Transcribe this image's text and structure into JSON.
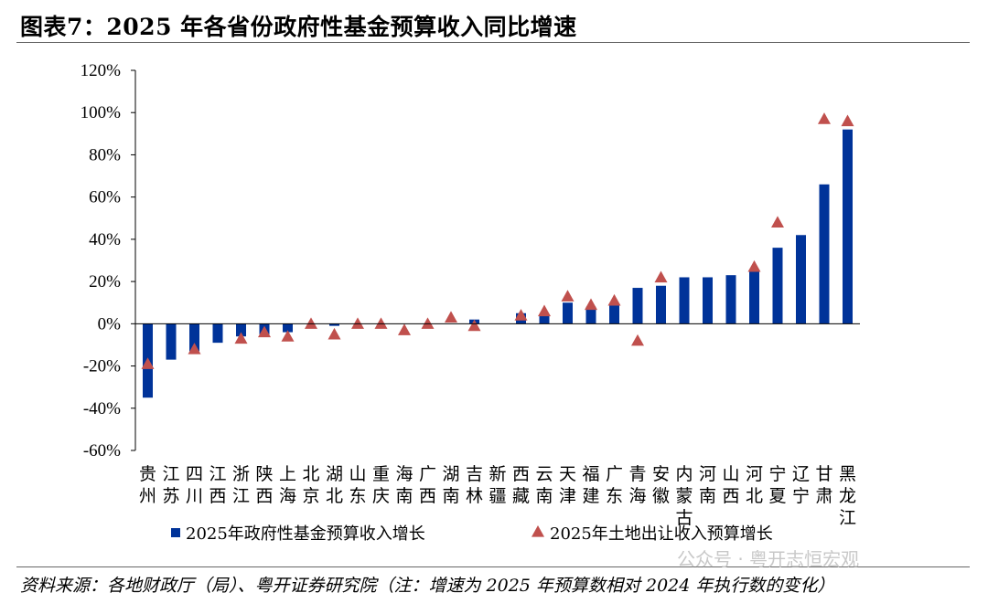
{
  "header": {
    "title": "图表7：2025 年各省份政府性基金预算收入同比增速"
  },
  "footer": {
    "source": "资料来源：各地财政厅（局）、粤开证券研究院（注：增速为 2025 年预算数相对 2024 年执行数的变化）",
    "watermark": "公众号 · 粤开志恒宏观"
  },
  "chart_data": {
    "type": "bar",
    "title": "",
    "xlabel": "",
    "ylabel": "",
    "ylim": [
      -60,
      120
    ],
    "yticks": [
      -60,
      -40,
      -20,
      0,
      20,
      40,
      60,
      80,
      100,
      120
    ],
    "ytick_labels": [
      "-60%",
      "-40%",
      "-20%",
      "0%",
      "20%",
      "40%",
      "60%",
      "80%",
      "100%",
      "120%"
    ],
    "grid": false,
    "legend_position": "bottom",
    "categories": [
      "贵州",
      "江苏",
      "四川",
      "江西",
      "浙江",
      "陕西",
      "上海",
      "北京",
      "湖北",
      "山东",
      "重庆",
      "海南",
      "广西",
      "湖南",
      "吉林",
      "新疆",
      "西藏",
      "云南",
      "天津",
      "福建",
      "广东",
      "青海",
      "安徽",
      "内蒙古",
      "河南",
      "山西",
      "河北",
      "宁夏",
      "辽宁",
      "甘肃",
      "黑龙江"
    ],
    "series": [
      {
        "name": "2025年政府性基金预算收入增长",
        "type": "bar",
        "color": "#003399",
        "values": [
          -35,
          -17,
          -13,
          -9,
          -6,
          -5,
          -4,
          0,
          -1,
          0,
          0,
          0,
          0,
          0,
          2,
          0,
          5,
          4,
          10,
          8,
          9,
          17,
          18,
          22,
          22,
          23,
          25,
          36,
          42,
          66,
          92
        ]
      },
      {
        "name": "2025年土地出让收入预算增长",
        "type": "scatter",
        "marker": "triangle",
        "color": "#c0504d",
        "values": [
          -19,
          null,
          -12,
          null,
          -7,
          -4,
          -6,
          0,
          -5,
          0,
          0,
          -3,
          0,
          3,
          -1,
          null,
          4,
          6,
          13,
          9,
          11,
          -8,
          22,
          null,
          null,
          null,
          27,
          48,
          null,
          97,
          96
        ]
      }
    ]
  }
}
